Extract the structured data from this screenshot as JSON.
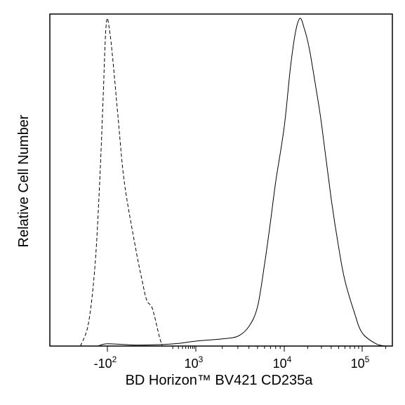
{
  "chart_data": {
    "type": "line",
    "title": "",
    "xlabel": "BD Horizon™ BV421 CD235a",
    "ylabel": "Relative Cell Number",
    "x_scale": "biexponential",
    "y_scale": "linear",
    "grid": false,
    "legend": "none",
    "x_ticks": [
      {
        "value": -100,
        "base": "-10",
        "exp": "2"
      },
      {
        "value": 1000,
        "base": "10",
        "exp": "3"
      },
      {
        "value": 10000,
        "base": "10",
        "exp": "4"
      },
      {
        "value": 100000,
        "base": "10",
        "exp": "5"
      }
    ],
    "series": [
      {
        "line_style": "dashed",
        "x": [
          -700,
          -400,
          -250,
          -180,
          -140,
          -120,
          -110,
          -100,
          -90,
          -75,
          -60,
          -40,
          -20,
          0,
          10,
          20,
          35,
          50,
          70,
          90
        ],
        "y": [
          0.0,
          0.07,
          0.25,
          0.5,
          0.75,
          0.92,
          0.98,
          1.0,
          0.98,
          0.93,
          0.85,
          0.7,
          0.5,
          0.3,
          0.2,
          0.14,
          0.12,
          0.08,
          0.03,
          0.0
        ]
      },
      {
        "line_style": "solid",
        "x": [
          -200,
          -100,
          0,
          100,
          300,
          1000,
          2000,
          3000,
          4000,
          5000,
          6000,
          7000,
          8000,
          10000,
          12000,
          14000,
          16000,
          18000,
          20000,
          22000,
          25000,
          30000,
          40000,
          50000,
          60000,
          80000,
          100000,
          150000,
          200000
        ],
        "y": [
          0.0,
          0.007,
          0.003,
          0.005,
          0.008,
          0.015,
          0.022,
          0.03,
          0.06,
          0.12,
          0.25,
          0.38,
          0.5,
          0.67,
          0.85,
          0.96,
          1.0,
          0.97,
          0.93,
          0.88,
          0.8,
          0.68,
          0.45,
          0.3,
          0.2,
          0.1,
          0.04,
          0.007,
          0.0
        ]
      }
    ]
  }
}
